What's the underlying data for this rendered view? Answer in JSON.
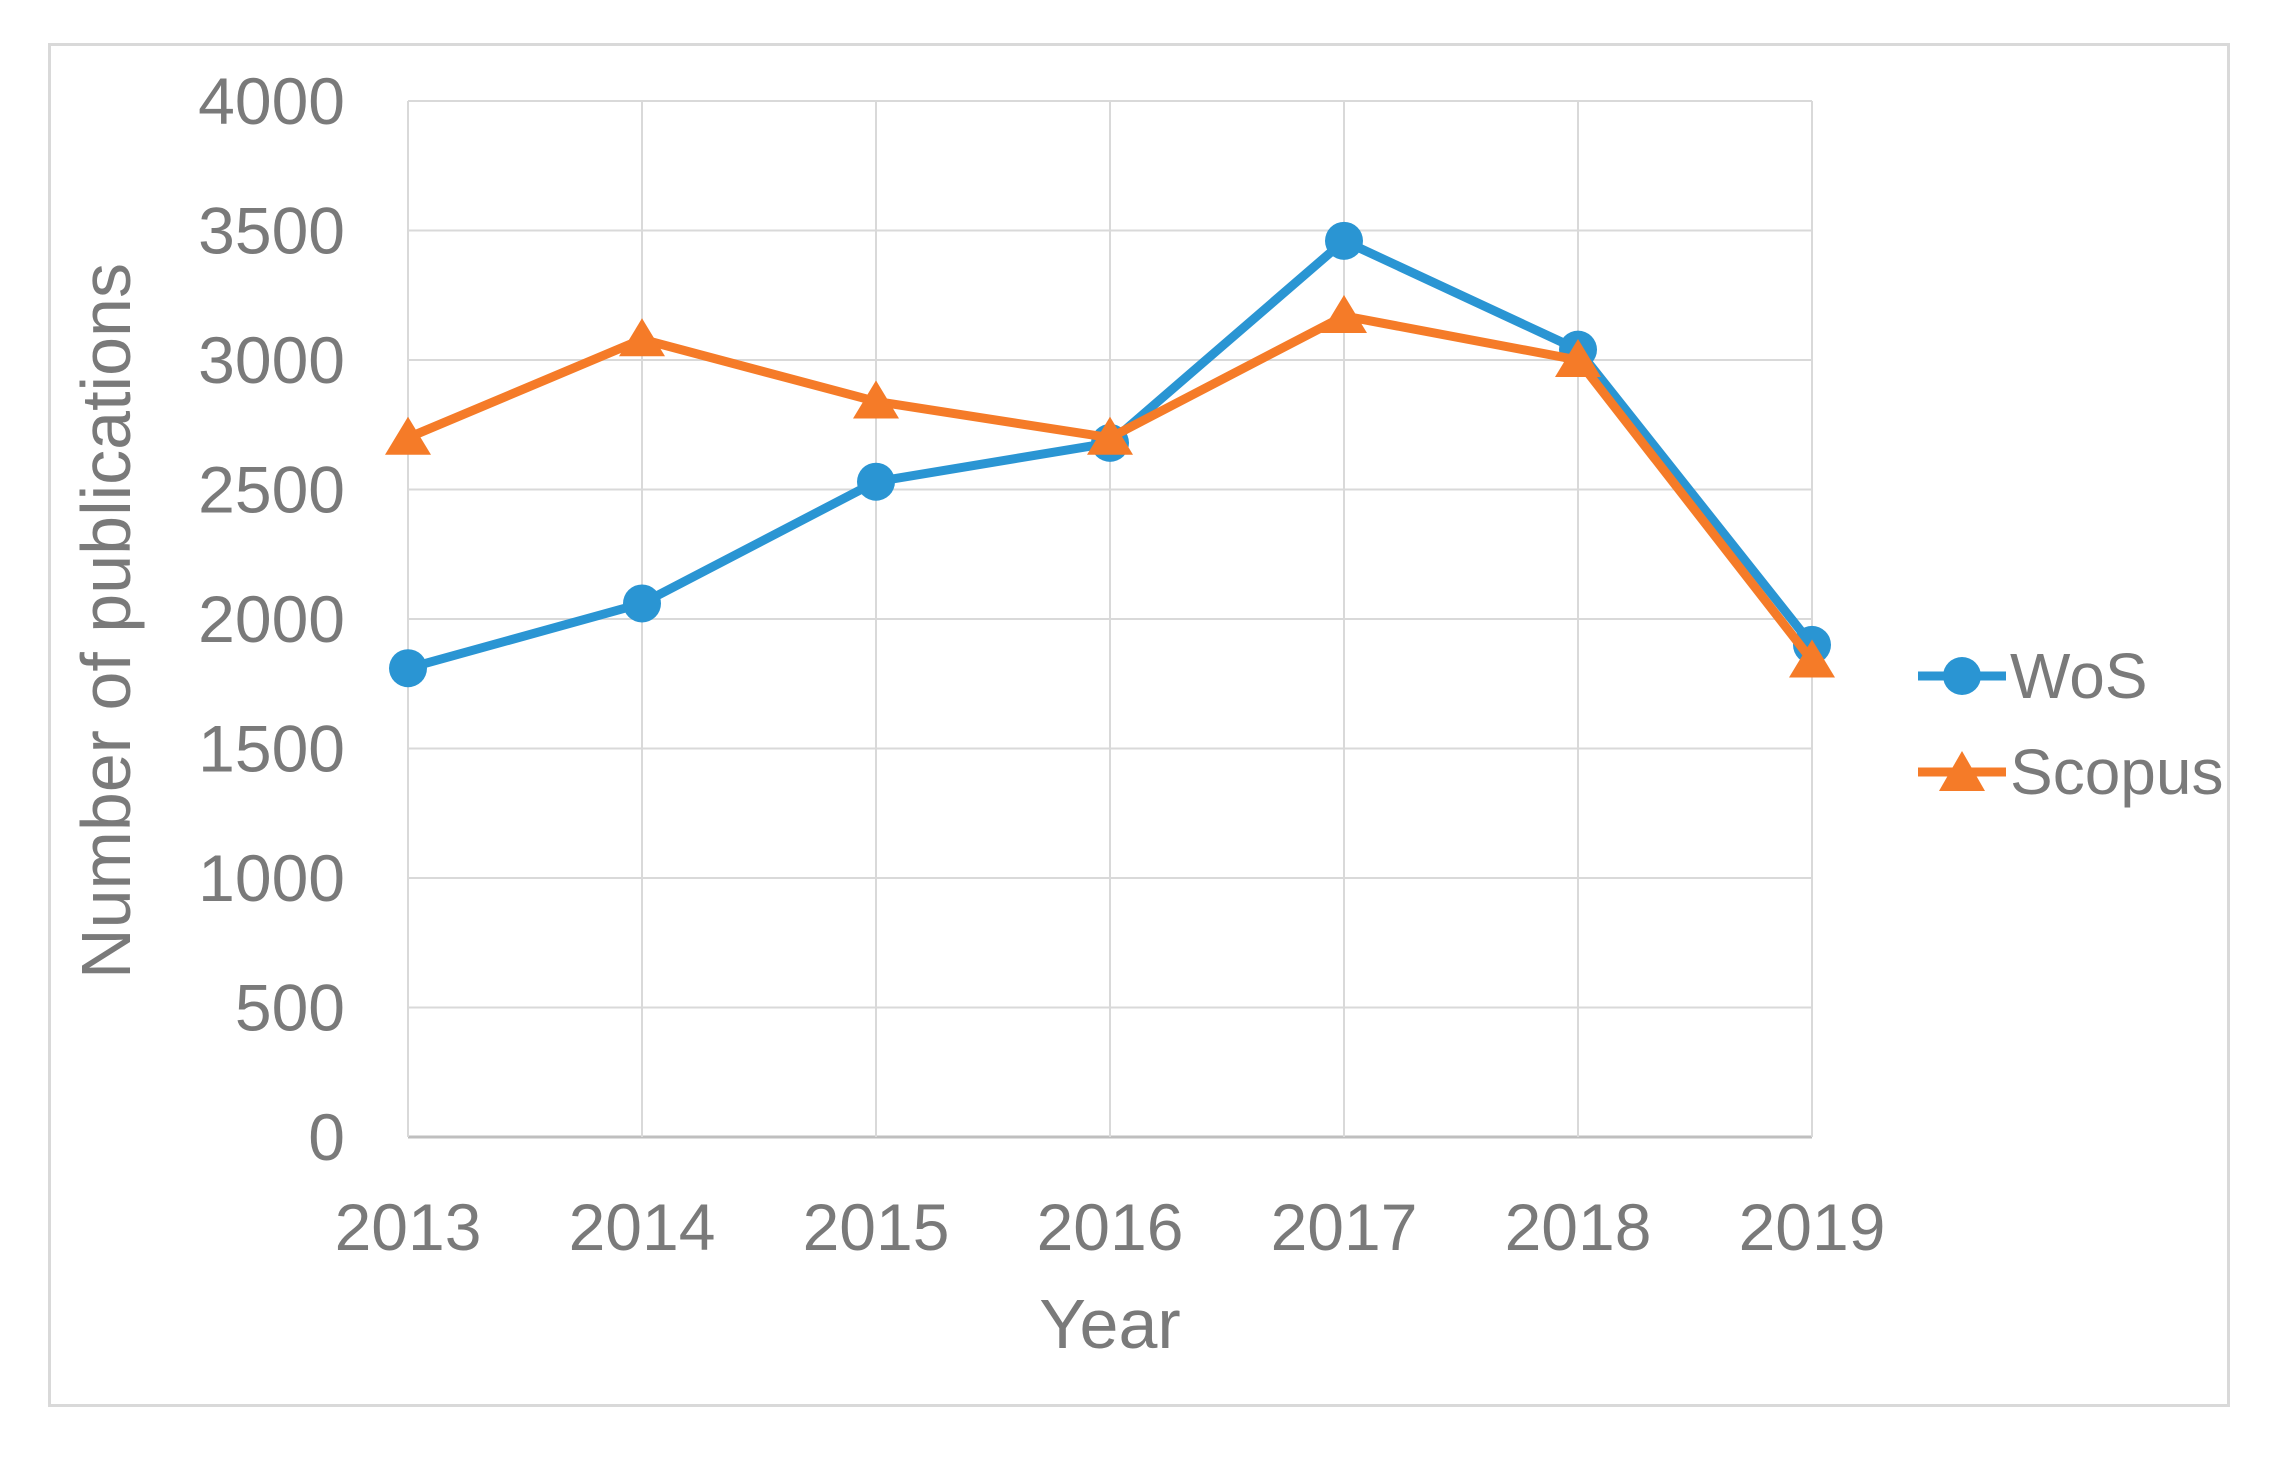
{
  "figure": {
    "background": "#FFFFFF",
    "border_color": "#D9D9D9"
  },
  "chart_data": {
    "type": "line",
    "title": "",
    "xlabel": "Year",
    "ylabel": "Number of publications",
    "x": [
      2013,
      2014,
      2015,
      2016,
      2017,
      2018,
      2019
    ],
    "series": [
      {
        "name": "WoS",
        "marker": "circle",
        "color": "#2A95D3",
        "values": [
          1810,
          2060,
          2530,
          2680,
          3460,
          3040,
          1900
        ]
      },
      {
        "name": "Scopus",
        "marker": "triangle",
        "color": "#F57B28",
        "values": [
          2700,
          3080,
          2840,
          2700,
          3170,
          3000,
          1840
        ]
      }
    ],
    "ylim": [
      0,
      4000
    ],
    "yticks": [
      0,
      500,
      1000,
      1500,
      2000,
      2500,
      3000,
      3500,
      4000
    ],
    "grid": true,
    "legend_position": "right",
    "text_color": "#7A7A7A",
    "gridline_color": "#D9D9D9",
    "axisline_color": "#BFBFBF"
  }
}
